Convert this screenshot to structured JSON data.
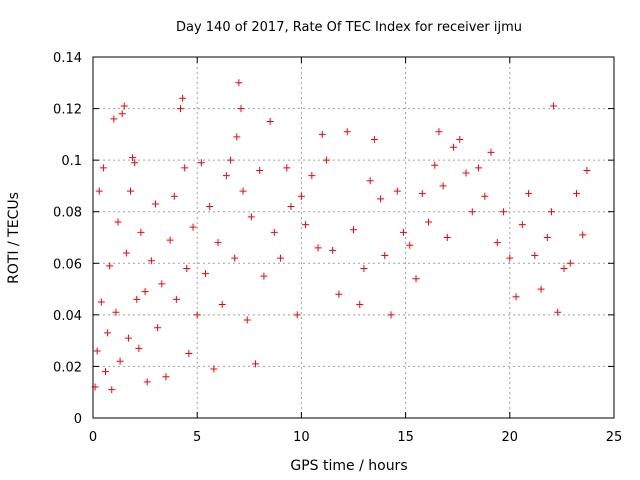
{
  "chart_data": {
    "type": "scatter",
    "title": "Day 140 of 2017, Rate Of TEC Index for receiver ijmu",
    "xlabel": "GPS time / hours",
    "ylabel": "ROTI / TECUs",
    "xlim": [
      0,
      25
    ],
    "ylim": [
      0,
      0.14
    ],
    "x_ticks": [
      0,
      5,
      10,
      15,
      20,
      25
    ],
    "y_ticks": [
      0,
      0.02,
      0.04,
      0.06,
      0.08,
      0.1,
      0.12,
      0.14
    ],
    "x_tick_labels": [
      "0",
      "5",
      "10",
      "15",
      "20",
      "25"
    ],
    "y_tick_labels": [
      "0",
      "0.02",
      "0.04",
      "0.06",
      "0.08",
      "0.1",
      "0.12",
      "0.14"
    ],
    "grid": true,
    "marker": "+",
    "color": "#ff0000",
    "series": [
      {
        "name": "ROTI",
        "points": [
          [
            0.1,
            0.012
          ],
          [
            0.2,
            0.026
          ],
          [
            0.3,
            0.088
          ],
          [
            0.4,
            0.045
          ],
          [
            0.5,
            0.097
          ],
          [
            0.6,
            0.018
          ],
          [
            0.7,
            0.033
          ],
          [
            0.8,
            0.059
          ],
          [
            0.9,
            0.011
          ],
          [
            1.0,
            0.116
          ],
          [
            1.1,
            0.041
          ],
          [
            1.2,
            0.076
          ],
          [
            1.3,
            0.022
          ],
          [
            1.4,
            0.118
          ],
          [
            1.5,
            0.121
          ],
          [
            1.6,
            0.064
          ],
          [
            1.7,
            0.031
          ],
          [
            1.8,
            0.088
          ],
          [
            1.9,
            0.101
          ],
          [
            2.0,
            0.099
          ],
          [
            2.1,
            0.046
          ],
          [
            2.2,
            0.027
          ],
          [
            2.3,
            0.072
          ],
          [
            2.5,
            0.049
          ],
          [
            2.6,
            0.014
          ],
          [
            2.8,
            0.061
          ],
          [
            3.0,
            0.083
          ],
          [
            3.1,
            0.035
          ],
          [
            3.3,
            0.052
          ],
          [
            3.5,
            0.016
          ],
          [
            3.7,
            0.069
          ],
          [
            3.9,
            0.086
          ],
          [
            4.0,
            0.046
          ],
          [
            4.2,
            0.12
          ],
          [
            4.3,
            0.124
          ],
          [
            4.4,
            0.097
          ],
          [
            4.5,
            0.058
          ],
          [
            4.6,
            0.025
          ],
          [
            4.8,
            0.074
          ],
          [
            5.0,
            0.04
          ],
          [
            5.2,
            0.099
          ],
          [
            5.4,
            0.056
          ],
          [
            5.6,
            0.082
          ],
          [
            5.8,
            0.019
          ],
          [
            6.0,
            0.068
          ],
          [
            6.2,
            0.044
          ],
          [
            6.4,
            0.094
          ],
          [
            6.6,
            0.1
          ],
          [
            6.8,
            0.062
          ],
          [
            6.9,
            0.109
          ],
          [
            7.0,
            0.13
          ],
          [
            7.1,
            0.12
          ],
          [
            7.2,
            0.088
          ],
          [
            7.4,
            0.038
          ],
          [
            7.6,
            0.078
          ],
          [
            7.8,
            0.021
          ],
          [
            8.0,
            0.096
          ],
          [
            8.2,
            0.055
          ],
          [
            8.5,
            0.115
          ],
          [
            8.7,
            0.072
          ],
          [
            9.0,
            0.062
          ],
          [
            9.3,
            0.097
          ],
          [
            9.5,
            0.082
          ],
          [
            9.8,
            0.04
          ],
          [
            10.0,
            0.086
          ],
          [
            10.2,
            0.075
          ],
          [
            10.5,
            0.094
          ],
          [
            10.8,
            0.066
          ],
          [
            11.0,
            0.11
          ],
          [
            11.2,
            0.1
          ],
          [
            11.5,
            0.065
          ],
          [
            11.8,
            0.048
          ],
          [
            12.2,
            0.111
          ],
          [
            12.5,
            0.073
          ],
          [
            12.8,
            0.044
          ],
          [
            13.0,
            0.058
          ],
          [
            13.3,
            0.092
          ],
          [
            13.5,
            0.108
          ],
          [
            13.8,
            0.085
          ],
          [
            14.0,
            0.063
          ],
          [
            14.3,
            0.04
          ],
          [
            14.6,
            0.088
          ],
          [
            14.9,
            0.072
          ],
          [
            15.2,
            0.067
          ],
          [
            15.5,
            0.054
          ],
          [
            15.8,
            0.087
          ],
          [
            16.1,
            0.076
          ],
          [
            16.4,
            0.098
          ],
          [
            16.6,
            0.111
          ],
          [
            16.8,
            0.09
          ],
          [
            17.0,
            0.07
          ],
          [
            17.3,
            0.105
          ],
          [
            17.6,
            0.108
          ],
          [
            17.9,
            0.095
          ],
          [
            18.2,
            0.08
          ],
          [
            18.5,
            0.097
          ],
          [
            18.8,
            0.086
          ],
          [
            19.1,
            0.103
          ],
          [
            19.4,
            0.068
          ],
          [
            19.7,
            0.08
          ],
          [
            20.0,
            0.062
          ],
          [
            20.3,
            0.047
          ],
          [
            20.6,
            0.075
          ],
          [
            20.9,
            0.087
          ],
          [
            21.2,
            0.063
          ],
          [
            21.5,
            0.05
          ],
          [
            21.8,
            0.07
          ],
          [
            22.0,
            0.08
          ],
          [
            22.1,
            0.121
          ],
          [
            22.3,
            0.041
          ],
          [
            22.6,
            0.058
          ],
          [
            22.9,
            0.06
          ],
          [
            23.2,
            0.087
          ],
          [
            23.5,
            0.071
          ],
          [
            23.7,
            0.096
          ]
        ]
      }
    ]
  }
}
